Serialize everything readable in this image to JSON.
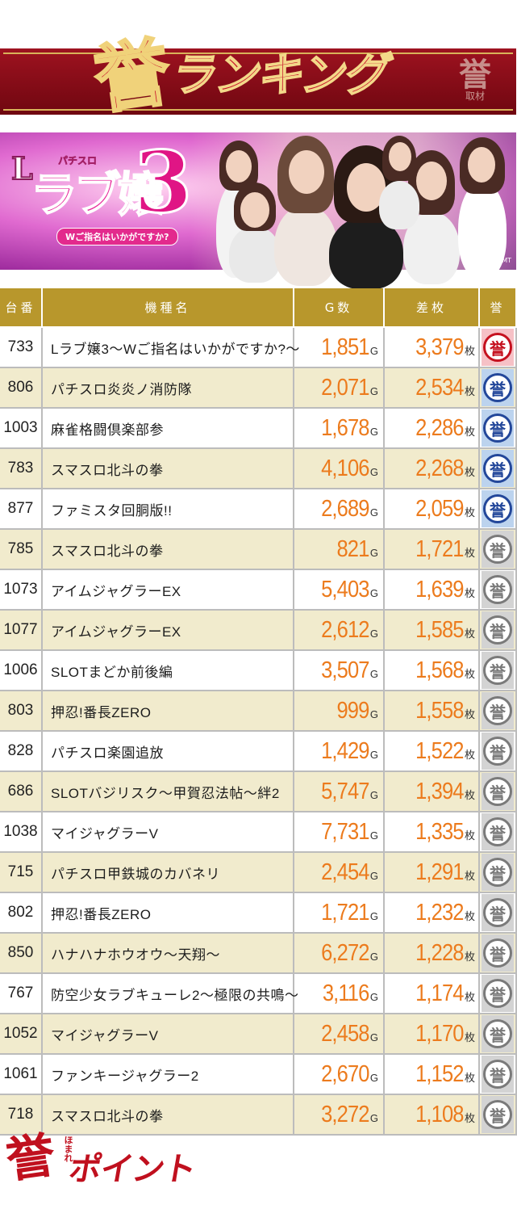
{
  "banner": {
    "kanji": "誉",
    "title": "ランキング",
    "seal_top": "誉",
    "seal_bottom": "取材"
  },
  "promo": {
    "logo_prefix": "L",
    "logo_main": "ラブ嬢",
    "logo_number": "3",
    "logo_tag": "パチスロ",
    "logo_sub": "Wご指名はいかがですか?",
    "copyright": "©AMT"
  },
  "table": {
    "headers": {
      "num": "台番",
      "name": "機種名",
      "games": "G数",
      "coins": "差枚",
      "badge": "誉"
    },
    "game_unit": "G",
    "coin_unit": "枚",
    "rows": [
      {
        "num": "733",
        "name": "Lラブ嬢3～Wご指名はいかがですか?～",
        "games": "1,851",
        "coins": "3,379",
        "tier": "gold"
      },
      {
        "num": "806",
        "name": "パチスロ炎炎ノ消防隊",
        "games": "2,071",
        "coins": "2,534",
        "tier": "blue"
      },
      {
        "num": "1003",
        "name": "麻雀格闘倶楽部参",
        "games": "1,678",
        "coins": "2,286",
        "tier": "blue"
      },
      {
        "num": "783",
        "name": "スマスロ北斗の拳",
        "games": "4,106",
        "coins": "2,268",
        "tier": "blue"
      },
      {
        "num": "877",
        "name": "ファミスタ回胴版!!",
        "games": "2,689",
        "coins": "2,059",
        "tier": "blue"
      },
      {
        "num": "785",
        "name": "スマスロ北斗の拳",
        "games": "821",
        "coins": "1,721",
        "tier": "silver"
      },
      {
        "num": "1073",
        "name": "アイムジャグラーEX",
        "games": "5,403",
        "coins": "1,639",
        "tier": "silver"
      },
      {
        "num": "1077",
        "name": "アイムジャグラーEX",
        "games": "2,612",
        "coins": "1,585",
        "tier": "silver"
      },
      {
        "num": "1006",
        "name": "SLOTまどか前後編",
        "games": "3,507",
        "coins": "1,568",
        "tier": "silver"
      },
      {
        "num": "803",
        "name": "押忍!番長ZERO",
        "games": "999",
        "coins": "1,558",
        "tier": "silver"
      },
      {
        "num": "828",
        "name": "パチスロ楽園追放",
        "games": "1,429",
        "coins": "1,522",
        "tier": "silver"
      },
      {
        "num": "686",
        "name": "SLOTバジリスク～甲賀忍法帖～絆2",
        "games": "5,747",
        "coins": "1,394",
        "tier": "silver"
      },
      {
        "num": "1038",
        "name": "マイジャグラーV",
        "games": "7,731",
        "coins": "1,335",
        "tier": "silver"
      },
      {
        "num": "715",
        "name": "パチスロ甲鉄城のカバネリ",
        "games": "2,454",
        "coins": "1,291",
        "tier": "silver"
      },
      {
        "num": "802",
        "name": "押忍!番長ZERO",
        "games": "1,721",
        "coins": "1,232",
        "tier": "silver"
      },
      {
        "num": "850",
        "name": "ハナハナホウオウ～天翔～",
        "games": "6,272",
        "coins": "1,228",
        "tier": "silver"
      },
      {
        "num": "767",
        "name": "防空少女ラブキューレ2～極限の共鳴～",
        "games": "3,116",
        "coins": "1,174",
        "tier": "silver"
      },
      {
        "num": "1052",
        "name": "マイジャグラーV",
        "games": "2,458",
        "coins": "1,170",
        "tier": "silver"
      },
      {
        "num": "1061",
        "name": "ファンキージャグラー2",
        "games": "2,670",
        "coins": "1,152",
        "tier": "silver"
      },
      {
        "num": "718",
        "name": "スマスロ北斗の拳",
        "games": "3,272",
        "coins": "1,108",
        "tier": "silver"
      }
    ],
    "medal_glyph": "誉"
  },
  "footer": {
    "kanji": "誉",
    "ruby": "ほまれ",
    "title": "ポイント"
  },
  "colors": {
    "banner_red": "#9e1220",
    "header_gold": "#b8972c",
    "row_alt": "#f1ebcd",
    "value_orange": "#ec7b1d",
    "gold_badge": "#c5111f",
    "blue_badge": "#23479a",
    "silver_badge": "#7a7a7a"
  }
}
